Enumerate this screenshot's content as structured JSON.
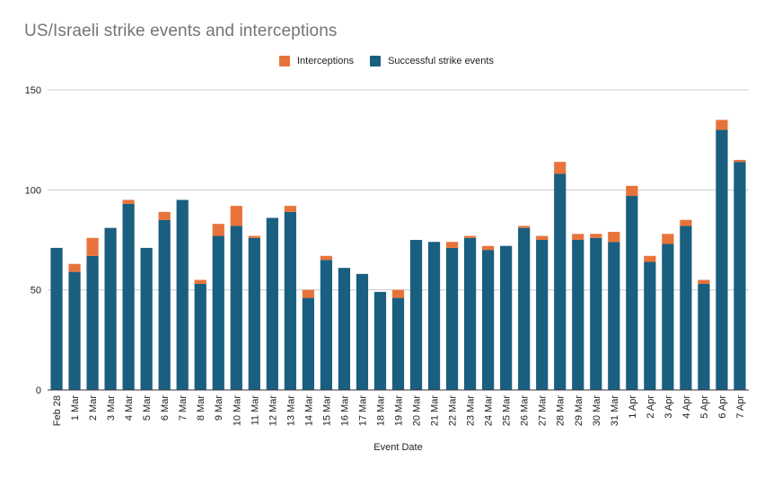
{
  "chart_data": {
    "type": "bar",
    "stacked": true,
    "title": "US/Israeli strike events and interceptions",
    "xlabel": "Event Date",
    "ylabel": "",
    "ylim": [
      0,
      150
    ],
    "yticks": [
      0,
      50,
      100,
      150
    ],
    "grid": true,
    "legend_position": "top-center",
    "categories": [
      "Feb 28",
      "1 Mar",
      "2 Mar",
      "3 Mar",
      "4 Mar",
      "5 Mar",
      "6 Mar",
      "7 Mar",
      "8 Mar",
      "9 Mar",
      "10 Mar",
      "11 Mar",
      "12 Mar",
      "13 Mar",
      "14 Mar",
      "15 Mar",
      "16 Mar",
      "17 Mar",
      "18 Mar",
      "19 Mar",
      "20 Mar",
      "21 Mar",
      "22 Mar",
      "23 Mar",
      "24 Mar",
      "25 Mar",
      "26 Mar",
      "27 Mar",
      "28 Mar",
      "29 Mar",
      "30 Mar",
      "31 Mar",
      "1 Apr",
      "2 Apr",
      "3 Apr",
      "4 Apr",
      "5 Apr",
      "6 Apr",
      "7 Apr"
    ],
    "series": [
      {
        "name": "Successful strike events",
        "color": "#1a5e80",
        "values": [
          71,
          59,
          67,
          81,
          93,
          71,
          85,
          95,
          53,
          77,
          82,
          76,
          86,
          89,
          46,
          65,
          61,
          58,
          49,
          46,
          75,
          74,
          71,
          76,
          70,
          72,
          81,
          75,
          108,
          75,
          76,
          74,
          97,
          64,
          73,
          82,
          53,
          130,
          114
        ]
      },
      {
        "name": "Interceptions",
        "color": "#e8733a",
        "values": [
          0,
          4,
          9,
          0,
          2,
          0,
          4,
          0,
          2,
          6,
          10,
          1,
          0,
          3,
          4,
          2,
          0,
          0,
          0,
          4,
          0,
          0,
          3,
          1,
          2,
          0,
          1,
          2,
          6,
          3,
          2,
          5,
          5,
          3,
          5,
          3,
          2,
          5,
          1
        ]
      }
    ],
    "legend_order": [
      "Interceptions",
      "Successful strike events"
    ]
  },
  "colors": {
    "grid": "#cccccc",
    "axis": "#333333",
    "text": "#222222",
    "title": "#757575"
  }
}
